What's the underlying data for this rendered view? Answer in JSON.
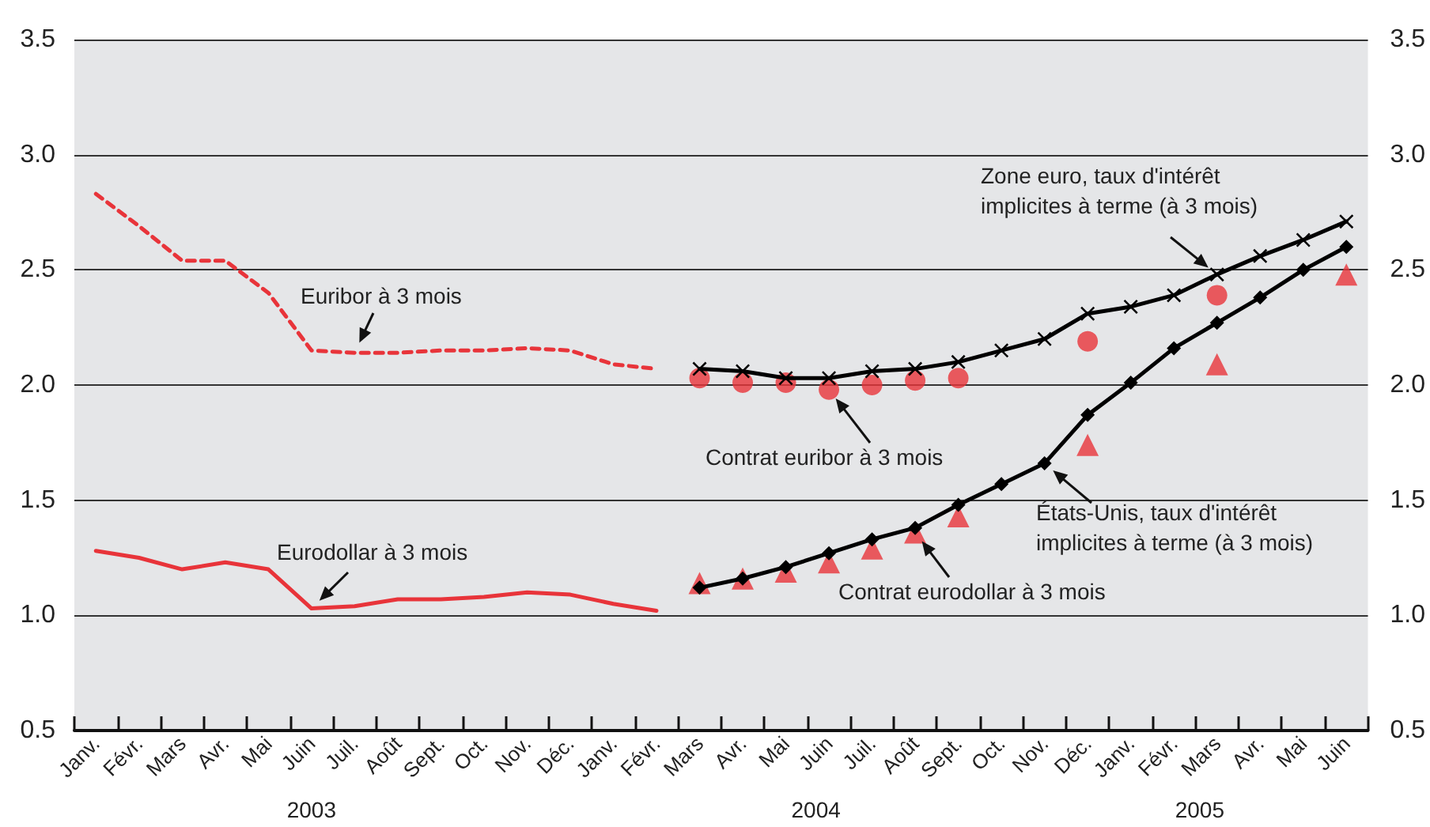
{
  "chart_data": {
    "type": "line",
    "categories": [
      "Janv.",
      "Févr.",
      "Mars",
      "Avr.",
      "Mai",
      "Juin",
      "Juil.",
      "Août",
      "Sept.",
      "Oct.",
      "Nov.",
      "Déc.",
      "Janv.",
      "Févr.",
      "Mars",
      "Avr.",
      "Mai",
      "Juin",
      "Juil.",
      "Août",
      "Sept.",
      "Oct.",
      "Nov.",
      "Déc.",
      "Janv.",
      "Févr.",
      "Mars",
      "Avr.",
      "Mai",
      "Juin"
    ],
    "series": [
      {
        "name": "Euribor à 3 mois",
        "color": "#e8343a",
        "line_style": "dashed",
        "marker": "none",
        "values": [
          2.83,
          2.69,
          2.54,
          2.54,
          2.4,
          2.15,
          2.14,
          2.14,
          2.15,
          2.15,
          2.16,
          2.15,
          2.09,
          2.07,
          null,
          null,
          null,
          null,
          null,
          null,
          null,
          null,
          null,
          null,
          null,
          null,
          null,
          null,
          null,
          null
        ]
      },
      {
        "name": "Eurodollar à 3 mois",
        "color": "#e8343a",
        "line_style": "solid",
        "marker": "none",
        "values": [
          1.28,
          1.25,
          1.2,
          1.23,
          1.2,
          1.03,
          1.04,
          1.07,
          1.07,
          1.08,
          1.1,
          1.09,
          1.05,
          1.02,
          null,
          null,
          null,
          null,
          null,
          null,
          null,
          null,
          null,
          null,
          null,
          null,
          null,
          null,
          null,
          null
        ]
      },
      {
        "name": "Zone euro, taux d'intérêt implicites à terme (à 3 mois)",
        "color": "#000000",
        "line_style": "solid",
        "marker": "cross",
        "values": [
          null,
          null,
          null,
          null,
          null,
          null,
          null,
          null,
          null,
          null,
          null,
          null,
          null,
          null,
          2.07,
          2.06,
          2.03,
          2.03,
          2.06,
          2.07,
          2.1,
          2.15,
          2.2,
          2.31,
          2.34,
          2.39,
          2.48,
          2.56,
          2.63,
          2.71
        ]
      },
      {
        "name": "États-Unis, taux d'intérêt implicites à terme (à 3 mois)",
        "color": "#000000",
        "line_style": "solid",
        "marker": "diamond",
        "values": [
          null,
          null,
          null,
          null,
          null,
          null,
          null,
          null,
          null,
          null,
          null,
          null,
          null,
          null,
          1.12,
          1.16,
          1.21,
          1.27,
          1.33,
          1.38,
          1.48,
          1.57,
          1.66,
          1.87,
          2.01,
          2.16,
          2.27,
          2.38,
          2.5,
          2.6
        ]
      },
      {
        "name": "Contrat euribor à 3 mois",
        "type": "scatter",
        "color": "#e8343a",
        "marker": "circle",
        "values": [
          null,
          null,
          null,
          null,
          null,
          null,
          null,
          null,
          null,
          null,
          null,
          null,
          null,
          null,
          2.03,
          2.01,
          2.01,
          1.98,
          2.0,
          2.02,
          2.03,
          null,
          null,
          2.19,
          null,
          null,
          2.39,
          null,
          null,
          null
        ]
      },
      {
        "name": "Contrat eurodollar à 3 mois",
        "type": "scatter",
        "color": "#e8343a",
        "marker": "triangle",
        "values": [
          null,
          null,
          null,
          null,
          null,
          null,
          null,
          null,
          null,
          null,
          null,
          null,
          null,
          null,
          1.14,
          1.16,
          1.19,
          1.23,
          1.29,
          1.36,
          1.43,
          null,
          null,
          1.74,
          null,
          null,
          2.09,
          null,
          null,
          2.48
        ]
      }
    ],
    "ylim": [
      0.5,
      3.5
    ],
    "yticks": [
      {
        "value": 0.5,
        "label": "0.5"
      },
      {
        "value": 1,
        "label": "1.0"
      },
      {
        "value": 1.5,
        "label": "1.5"
      },
      {
        "value": 2,
        "label": "2.0"
      },
      {
        "value": 2.5,
        "label": "2.5"
      },
      {
        "value": 3,
        "label": "3.0"
      },
      {
        "value": 3.5,
        "label": "3.5"
      }
    ],
    "y2lim": [
      0.5,
      3.5
    ],
    "y2ticks": [
      {
        "value": 0.5,
        "label": "0.5"
      },
      {
        "value": 1,
        "label": "1.0"
      },
      {
        "value": 1.5,
        "label": "1.5"
      },
      {
        "value": 2,
        "label": "2.0"
      },
      {
        "value": 2.5,
        "label": "2.5"
      },
      {
        "value": 3,
        "label": "3.0"
      },
      {
        "value": 3.5,
        "label": "3.5"
      }
    ],
    "grid": "y",
    "legend": false,
    "annotations": [
      "2003",
      "2004",
      "2005"
    ]
  }
}
